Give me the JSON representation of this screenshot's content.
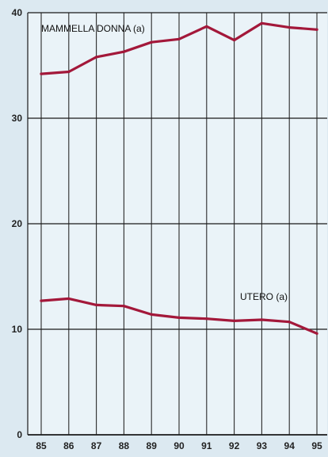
{
  "chart_data": {
    "type": "line",
    "categories": [
      "85",
      "86",
      "87",
      "88",
      "89",
      "90",
      "91",
      "92",
      "93",
      "94",
      "95"
    ],
    "series": [
      {
        "name": "MAMMELLA DONNA (a)",
        "values": [
          34.2,
          34.4,
          35.8,
          36.3,
          37.2,
          37.5,
          38.7,
          37.4,
          39.0,
          38.6,
          38.4
        ]
      },
      {
        "name": "UTERO (a)",
        "values": [
          12.7,
          12.9,
          12.3,
          12.2,
          11.4,
          11.1,
          11.0,
          10.8,
          10.9,
          10.7,
          9.6
        ]
      }
    ],
    "xlabel": "",
    "ylabel": "",
    "ylim": [
      0,
      40
    ],
    "yticks": [
      0,
      10,
      20,
      30,
      40
    ],
    "grid": true,
    "legend": "inline labels",
    "line_color": "#a3183a"
  }
}
